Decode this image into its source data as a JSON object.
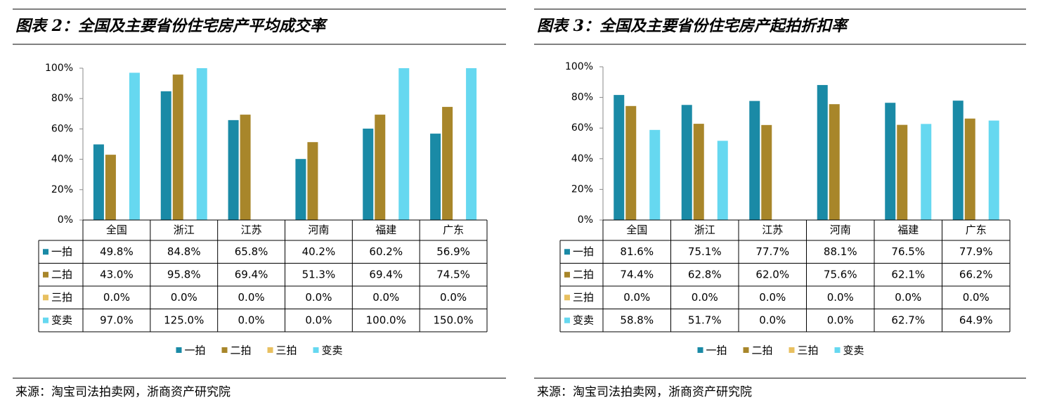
{
  "chart_data": [
    {
      "type": "bar",
      "title": "图表 2：全国及主要省份住宅房产平均成交率",
      "categories": [
        "全国",
        "浙江",
        "江苏",
        "河南",
        "福建",
        "广东"
      ],
      "series": [
        {
          "name": "一拍",
          "color": "#1a8aa6",
          "values": [
            49.8,
            84.8,
            65.8,
            40.2,
            60.2,
            56.9
          ],
          "value_labels": [
            "49.8%",
            "84.8%",
            "65.8%",
            "40.2%",
            "60.2%",
            "56.9%"
          ]
        },
        {
          "name": "二拍",
          "color": "#a8862a",
          "values": [
            43.0,
            95.8,
            69.4,
            51.3,
            69.4,
            74.5
          ],
          "value_labels": [
            "43.0%",
            "95.8%",
            "69.4%",
            "51.3%",
            "69.4%",
            "74.5%"
          ]
        },
        {
          "name": "三拍",
          "color": "#e8c060",
          "values": [
            0.0,
            0.0,
            0.0,
            0.0,
            0.0,
            0.0
          ],
          "value_labels": [
            "0.0%",
            "0.0%",
            "0.0%",
            "0.0%",
            "0.0%",
            "0.0%"
          ]
        },
        {
          "name": "变卖",
          "color": "#66d8f0",
          "values": [
            97.0,
            125.0,
            0.0,
            0.0,
            100.0,
            150.0
          ],
          "value_labels": [
            "97.0%",
            "125.0%",
            "0.0%",
            "0.0%",
            "100.0%",
            "150.0%"
          ]
        }
      ],
      "ylim": [
        0,
        100
      ],
      "yticks": [
        {
          "value": 0,
          "label": "0%"
        },
        {
          "value": 20,
          "label": "20%"
        },
        {
          "value": 40,
          "label": "40%"
        },
        {
          "value": 60,
          "label": "60%"
        },
        {
          "value": 80,
          "label": "80%"
        },
        {
          "value": 100,
          "label": "100%"
        }
      ],
      "source": "来源：淘宝司法拍卖网，浙商资产研究院"
    },
    {
      "type": "bar",
      "title": "图表 3：全国及主要省份住宅房产起拍折扣率",
      "categories": [
        "全国",
        "浙江",
        "江苏",
        "河南",
        "福建",
        "广东"
      ],
      "series": [
        {
          "name": "一拍",
          "color": "#1a8aa6",
          "values": [
            81.6,
            75.1,
            77.7,
            88.1,
            76.5,
            77.9
          ],
          "value_labels": [
            "81.6%",
            "75.1%",
            "77.7%",
            "88.1%",
            "76.5%",
            "77.9%"
          ]
        },
        {
          "name": "二拍",
          "color": "#a8862a",
          "values": [
            74.4,
            62.8,
            62.0,
            75.6,
            62.1,
            66.2
          ],
          "value_labels": [
            "74.4%",
            "62.8%",
            "62.0%",
            "75.6%",
            "62.1%",
            "66.2%"
          ]
        },
        {
          "name": "三拍",
          "color": "#e8c060",
          "values": [
            0.0,
            0.0,
            0.0,
            0.0,
            0.0,
            0.0
          ],
          "value_labels": [
            "0.0%",
            "0.0%",
            "0.0%",
            "0.0%",
            "0.0%",
            "0.0%"
          ]
        },
        {
          "name": "变卖",
          "color": "#66d8f0",
          "values": [
            58.8,
            51.7,
            0.0,
            0.0,
            62.7,
            64.9
          ],
          "value_labels": [
            "58.8%",
            "51.7%",
            "0.0%",
            "0.0%",
            "62.7%",
            "64.9%"
          ]
        }
      ],
      "ylim": [
        0,
        100
      ],
      "yticks": [
        {
          "value": 0,
          "label": "0%"
        },
        {
          "value": 20,
          "label": "20%"
        },
        {
          "value": 40,
          "label": "40%"
        },
        {
          "value": 60,
          "label": "60%"
        },
        {
          "value": 80,
          "label": "80%"
        },
        {
          "value": 100,
          "label": "100%"
        }
      ],
      "source": "来源：淘宝司法拍卖网，浙商资产研究院"
    }
  ]
}
